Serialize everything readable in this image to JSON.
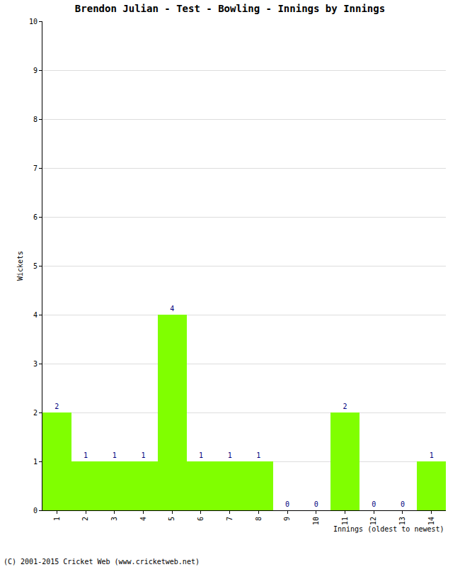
{
  "chart_data": {
    "type": "bar",
    "title": "Brendon Julian - Test - Bowling - Innings by Innings",
    "x_label": "Innings (oldest to newest)",
    "y_label": "Wickets",
    "categories": [
      "1",
      "2",
      "3",
      "4",
      "5",
      "6",
      "7",
      "8",
      "9",
      "10",
      "11",
      "12",
      "13",
      "14"
    ],
    "values": [
      2,
      1,
      1,
      1,
      4,
      1,
      1,
      1,
      0,
      0,
      2,
      0,
      0,
      1
    ],
    "color": "#80ff00",
    "ylim": [
      0,
      10
    ],
    "yticks": [
      0,
      1,
      2,
      3,
      4,
      5,
      6,
      7,
      8,
      9,
      10
    ],
    "grid": true,
    "data_labels": true,
    "annotations": [
      "(C) 2001-2015 Cricket Web (www.cricketweb.net)"
    ]
  }
}
